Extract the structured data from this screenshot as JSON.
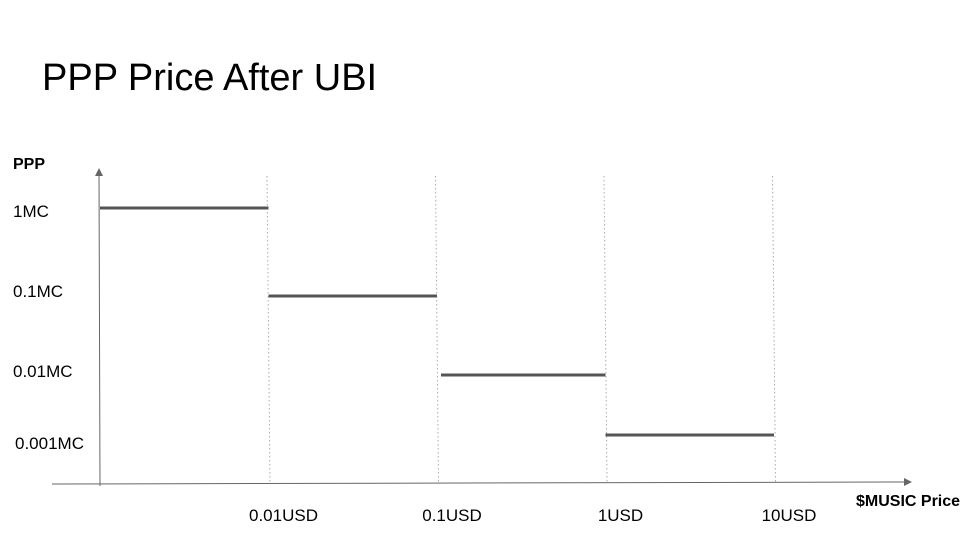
{
  "slide": {
    "title": "PPP Price After UBI"
  },
  "chart_data": {
    "type": "line",
    "title": "PPP Price After UBI",
    "ylabel": "PPP",
    "xlabel": "$MUSIC Price",
    "x_scale": "log",
    "y_scale": "log",
    "x_ticks": [
      "0.01USD",
      "0.1USD",
      "1USD",
      "10USD"
    ],
    "y_ticks": [
      "1MC",
      "0.1MC",
      "0.01MC",
      "0.001MC"
    ],
    "grid": {
      "vertical_dotted": true,
      "horizontal": false
    },
    "colors": {
      "axis": "#666666",
      "line": "#555555",
      "grid": "#aaaaaa"
    },
    "series": [
      {
        "segments": [
          {
            "x_from": "0.001USD",
            "x_to": "0.01USD",
            "y": "1MC"
          },
          {
            "x_from": "0.01USD",
            "x_to": "0.1USD",
            "y": "0.1MC"
          },
          {
            "x_from": "0.1USD",
            "x_to": "1USD",
            "y": "0.01MC"
          },
          {
            "x_from": "1USD",
            "x_to": "10USD",
            "y": "0.001MC"
          }
        ]
      }
    ]
  }
}
